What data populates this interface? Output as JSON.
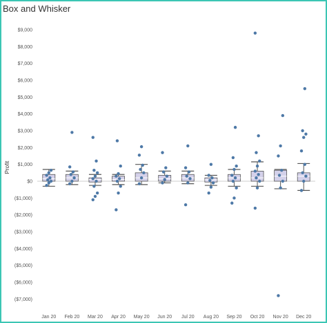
{
  "title": "Box and Whisker",
  "chart_data": {
    "type": "box",
    "title": "Box and Whisker",
    "xlabel": "",
    "ylabel": "Profit",
    "ylim": [
      -7700,
      9400
    ],
    "yticks": [
      9000,
      8000,
      7000,
      6000,
      5000,
      4000,
      3000,
      2000,
      1000,
      0,
      -1000,
      -2000,
      -3000,
      -4000,
      -5000,
      -6000,
      -7000
    ],
    "ytick_labels": [
      "$9,000",
      "$8,000",
      "$7,000",
      "$6,000",
      "$5,000",
      "$4,000",
      "$3,000",
      "$2,000",
      "$1,000",
      "$0",
      "($1,000)",
      "($2,000)",
      "($3,000)",
      "($4,000)",
      "($5,000)",
      "($6,000)",
      "($7,000)"
    ],
    "grid": false,
    "colors": {
      "box_fill": "#d4d1ea",
      "box_stroke": "#555555",
      "point": "#4e79a7",
      "frame": "#3bc6b4"
    },
    "categories": [
      "Jan 20",
      "Feb 20",
      "Mar 20",
      "Apr 20",
      "May 20",
      "Jun 20",
      "Jul 20",
      "Aug 20",
      "Sep 20",
      "Oct 20",
      "Nov 20",
      "Dec 20"
    ],
    "boxes": [
      {
        "whisker_low": -300,
        "q1": 0,
        "median": 150,
        "q3": 400,
        "whisker_high": 700,
        "points": [
          -250,
          -100,
          0,
          80,
          200,
          350,
          500,
          650
        ]
      },
      {
        "whisker_low": -200,
        "q1": 0,
        "median": 200,
        "q3": 400,
        "whisker_high": 600,
        "points": [
          -150,
          0,
          200,
          400,
          550,
          850,
          2900
        ]
      },
      {
        "whisker_low": -250,
        "q1": -50,
        "median": 100,
        "q3": 200,
        "whisker_high": 400,
        "points": [
          -1100,
          -900,
          -700,
          -300,
          0,
          150,
          300,
          500,
          650,
          1200,
          2600
        ]
      },
      {
        "whisker_low": -200,
        "q1": 0,
        "median": 100,
        "q3": 300,
        "whisker_high": 400,
        "points": [
          -1700,
          -700,
          -300,
          0,
          150,
          300,
          450,
          900,
          2400
        ]
      },
      {
        "whisker_low": -200,
        "q1": 0,
        "median": 200,
        "q3": 500,
        "whisker_high": 1000,
        "points": [
          -150,
          200,
          500,
          700,
          950,
          1550,
          2050
        ]
      },
      {
        "whisker_low": -100,
        "q1": 0,
        "median": 150,
        "q3": 350,
        "whisker_high": 600,
        "points": [
          -100,
          100,
          300,
          550,
          800,
          1700
        ]
      },
      {
        "whisker_low": -150,
        "q1": 0,
        "median": 200,
        "q3": 400,
        "whisker_high": 600,
        "points": [
          -1400,
          -100,
          150,
          300,
          550,
          800,
          2100
        ]
      },
      {
        "whisker_low": -250,
        "q1": -50,
        "median": 80,
        "q3": 200,
        "whisker_high": 350,
        "points": [
          -700,
          -350,
          -100,
          50,
          200,
          350,
          1000
        ]
      },
      {
        "whisker_low": -300,
        "q1": 0,
        "median": 200,
        "q3": 400,
        "whisker_high": 700,
        "points": [
          -1300,
          -1000,
          -400,
          0,
          200,
          350,
          700,
          900,
          1400,
          3200
        ]
      },
      {
        "whisker_low": -300,
        "q1": 0,
        "median": 200,
        "q3": 600,
        "whisker_high": 1150,
        "points": [
          -1600,
          -400,
          0,
          200,
          400,
          600,
          900,
          1200,
          1700,
          2700,
          8800
        ]
      },
      {
        "whisker_low": -450,
        "q1": 0,
        "median": 300,
        "q3": 650,
        "whisker_high": 700,
        "points": [
          -6800,
          -400,
          0,
          350,
          650,
          1500,
          2100,
          3900
        ]
      },
      {
        "whisker_low": -550,
        "q1": 0,
        "median": 300,
        "q3": 500,
        "whisker_high": 1050,
        "points": [
          -550,
          0,
          300,
          500,
          1000,
          1800,
          2600,
          2800,
          3000,
          5500
        ]
      }
    ]
  }
}
